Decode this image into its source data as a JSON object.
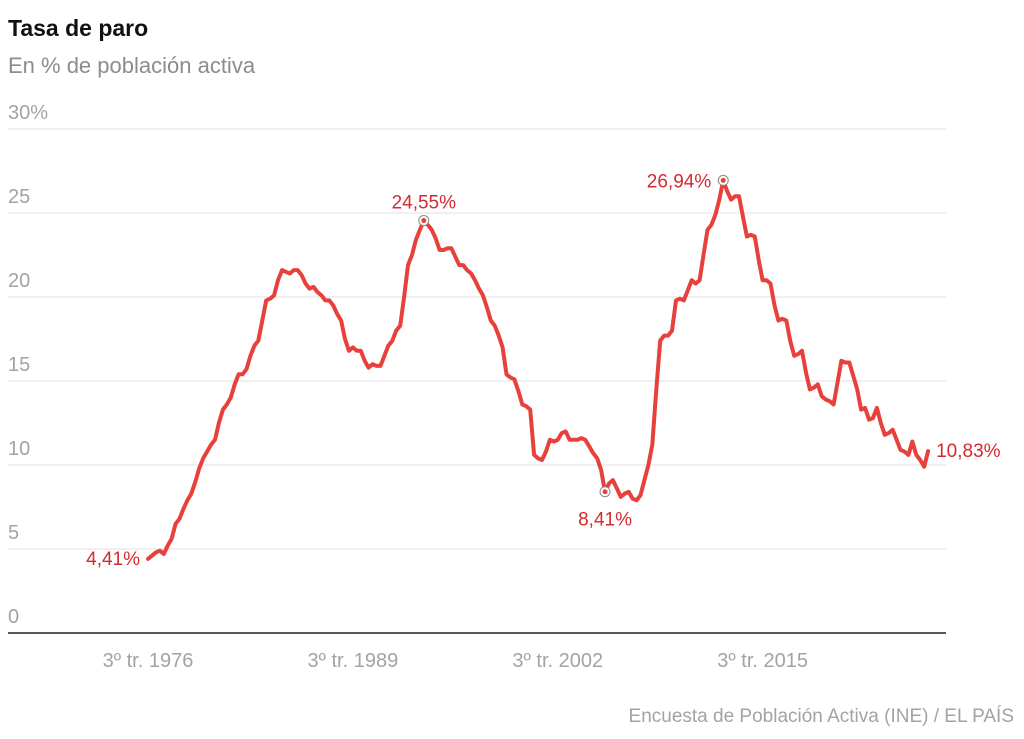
{
  "chart_data": {
    "type": "line",
    "title": "Tasa de paro",
    "subtitle": "En % de población activa",
    "source": "Encuesta de Población Activa (INE) / EL PAÍS",
    "color": "#e8403b",
    "ylim": [
      0,
      30
    ],
    "yticks": [
      0,
      5,
      10,
      15,
      20,
      25,
      {
        "value": 30,
        "label": "30%"
      }
    ],
    "grid": true,
    "categories": [
      "3º tr. 1976",
      null,
      null,
      null,
      null,
      null,
      null,
      null,
      null,
      null,
      null,
      null,
      null,
      null,
      null,
      null,
      null,
      null,
      null,
      null,
      null,
      null,
      null,
      null,
      null,
      null,
      null,
      null,
      null,
      null,
      null,
      null,
      null,
      null,
      null,
      null,
      null,
      null,
      null,
      null,
      null,
      null,
      null,
      null,
      null,
      null,
      null,
      null,
      null,
      null,
      null,
      null,
      "3º tr. 1989",
      null,
      null,
      null,
      null,
      null,
      null,
      null,
      null,
      null,
      null,
      null,
      null,
      null,
      null,
      null,
      null,
      null,
      null,
      null,
      null,
      null,
      null,
      null,
      null,
      null,
      null,
      null,
      null,
      null,
      null,
      null,
      null,
      null,
      null,
      null,
      null,
      null,
      null,
      null,
      null,
      null,
      null,
      null,
      null,
      null,
      null,
      null,
      null,
      null,
      null,
      null,
      "3º tr. 2002",
      null,
      null,
      null,
      null,
      null,
      null,
      null,
      null,
      null,
      null,
      null,
      null,
      null,
      null,
      null,
      null,
      null,
      null,
      null,
      null,
      null,
      null,
      null,
      null,
      null,
      null,
      null,
      null,
      null,
      null,
      null,
      null,
      null,
      null,
      null,
      null,
      null,
      null,
      null,
      null,
      null,
      null,
      null,
      null,
      null,
      null,
      null,
      null,
      null,
      null,
      null,
      "3º tr. 2015",
      null,
      null,
      null,
      null,
      null,
      null,
      null,
      null,
      null,
      null,
      null,
      null,
      null,
      null,
      null,
      null,
      null,
      null,
      null,
      null,
      null,
      null,
      null,
      null,
      null,
      null,
      null,
      null,
      null,
      null,
      null,
      null,
      null,
      null,
      null,
      null,
      null,
      null,
      null,
      null,
      null,
      null
    ],
    "values": [
      4.41,
      4.6,
      4.8,
      4.9,
      4.7,
      5.2,
      5.6,
      6.5,
      6.8,
      7.4,
      7.9,
      8.3,
      9.0,
      9.8,
      10.4,
      10.8,
      11.2,
      11.5,
      12.5,
      13.3,
      13.6,
      14.0,
      14.8,
      15.4,
      15.4,
      15.7,
      16.5,
      17.1,
      17.4,
      18.6,
      19.8,
      19.9,
      20.1,
      21.0,
      21.6,
      21.5,
      21.4,
      21.6,
      21.6,
      21.3,
      20.8,
      20.5,
      20.6,
      20.3,
      20.1,
      19.8,
      19.8,
      19.5,
      19.0,
      18.6,
      17.5,
      16.8,
      17.0,
      16.8,
      16.8,
      16.2,
      15.8,
      16.0,
      15.9,
      15.9,
      16.5,
      17.1,
      17.4,
      18.0,
      18.3,
      20.0,
      21.9,
      22.5,
      23.4,
      24.0,
      24.55,
      24.3,
      24.0,
      23.5,
      22.8,
      22.8,
      22.9,
      22.9,
      22.4,
      21.9,
      21.9,
      21.6,
      21.4,
      21.0,
      20.5,
      20.1,
      19.4,
      18.6,
      18.3,
      17.7,
      17.0,
      15.4,
      15.2,
      15.1,
      14.4,
      13.6,
      13.5,
      13.3,
      10.6,
      10.4,
      10.3,
      10.8,
      11.5,
      11.4,
      11.5,
      11.9,
      12.0,
      11.5,
      11.5,
      11.5,
      11.6,
      11.5,
      11.1,
      10.7,
      10.4,
      9.7,
      8.41,
      8.9,
      9.1,
      8.6,
      8.1,
      8.3,
      8.4,
      8.0,
      7.9,
      8.2,
      9.1,
      10.0,
      11.2,
      14.5,
      17.4,
      17.7,
      17.7,
      18.0,
      19.8,
      19.9,
      19.8,
      20.4,
      21.0,
      20.8,
      21.0,
      22.5,
      24.0,
      24.3,
      24.9,
      25.8,
      26.94,
      26.3,
      25.8,
      26.0,
      26.0,
      24.8,
      23.6,
      23.7,
      23.6,
      22.2,
      21.0,
      21.0,
      20.8,
      19.5,
      18.6,
      18.7,
      18.6,
      17.4,
      16.5,
      16.6,
      16.8,
      15.5,
      14.5,
      14.6,
      14.8,
      14.1,
      13.9,
      13.8,
      13.6,
      14.9,
      16.2,
      16.1,
      16.1,
      15.3,
      14.5,
      13.3,
      13.4,
      12.7,
      12.8,
      13.4,
      12.5,
      11.8,
      11.9,
      12.1,
      11.5,
      10.9,
      10.8,
      10.6,
      11.4,
      10.6,
      10.3,
      9.9,
      10.83
    ],
    "value_labels": [
      "4,41%",
      null,
      null,
      null,
      null,
      null,
      null,
      null,
      null,
      null,
      null,
      null,
      null,
      null,
      null,
      null,
      null,
      null,
      null,
      null,
      null,
      null,
      null,
      null,
      null,
      null,
      null,
      null,
      null,
      null,
      null,
      null,
      null,
      null,
      null,
      null,
      null,
      null,
      null,
      null,
      null,
      null,
      null,
      null,
      null,
      null,
      null,
      null,
      null,
      null,
      null,
      null,
      null,
      null,
      null,
      null,
      null,
      null,
      null,
      null,
      null,
      null,
      null,
      null,
      null,
      null,
      null,
      null,
      null,
      null,
      "24,55%",
      null,
      null,
      null,
      null,
      null,
      null,
      null,
      null,
      null,
      null,
      null,
      null,
      null,
      null,
      null,
      null,
      null,
      null,
      null,
      null,
      null,
      null,
      null,
      null,
      null,
      null,
      null,
      null,
      null,
      null,
      null,
      null,
      null,
      null,
      null,
      null,
      null,
      null,
      null,
      null,
      null,
      null,
      null,
      null,
      null,
      "8,41%",
      null,
      null,
      null,
      null,
      null,
      null,
      null,
      null,
      null,
      null,
      null,
      null,
      null,
      null,
      null,
      null,
      null,
      null,
      null,
      null,
      null,
      null,
      null,
      null,
      null,
      null,
      null,
      null,
      null,
      "26,94%",
      null,
      null,
      null,
      null,
      null,
      null,
      null,
      null,
      null,
      null,
      null,
      null,
      null,
      null,
      null,
      null,
      null,
      null,
      null,
      null,
      null,
      null,
      null,
      null,
      null,
      null,
      null,
      null,
      null,
      null,
      null,
      null,
      null,
      null,
      null,
      null,
      null,
      null,
      null,
      null,
      null,
      null,
      null,
      null,
      null,
      null,
      null,
      null,
      null,
      null,
      null,
      "10,83%"
    ]
  }
}
